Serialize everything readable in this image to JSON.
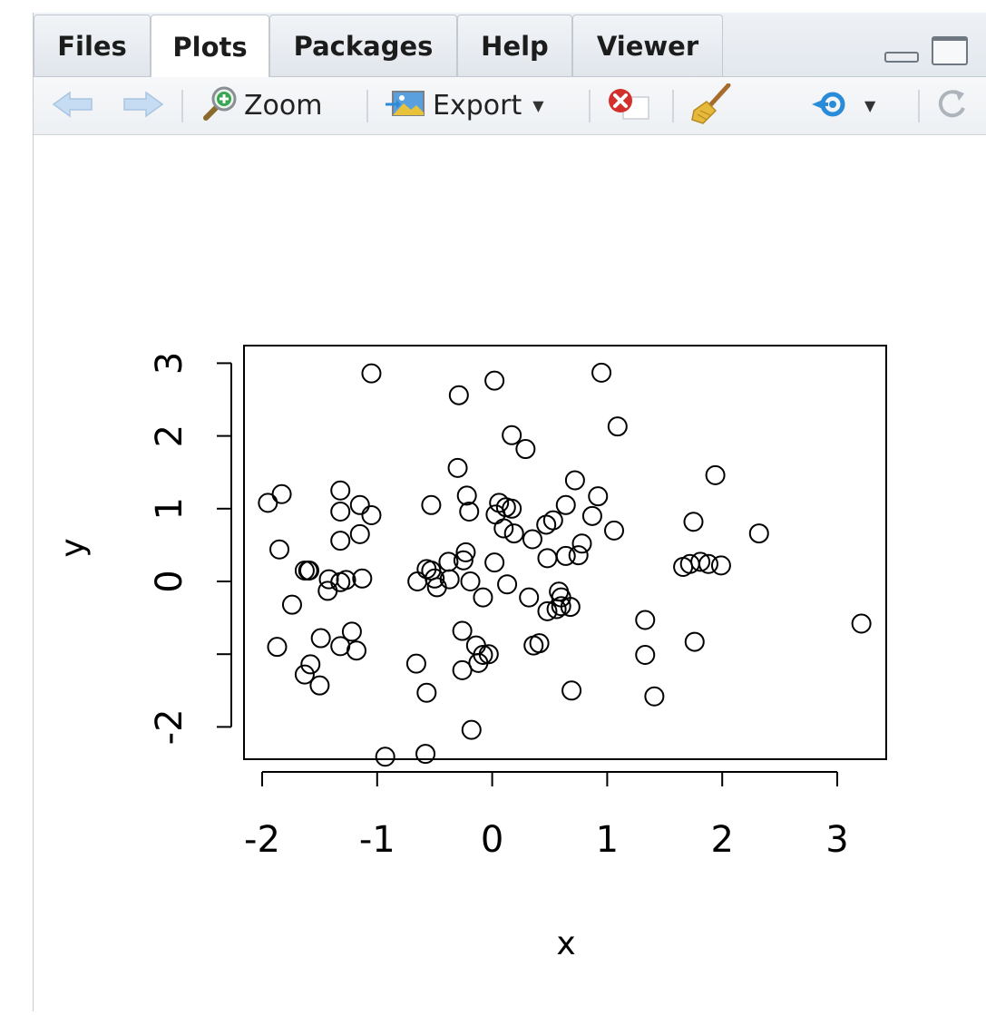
{
  "tabs": [
    {
      "label": "Files",
      "active": false
    },
    {
      "label": "Plots",
      "active": true
    },
    {
      "label": "Packages",
      "active": false
    },
    {
      "label": "Help",
      "active": false
    },
    {
      "label": "Viewer",
      "active": false
    }
  ],
  "toolbar": {
    "back_icon": "arrow-left-icon",
    "forward_icon": "arrow-right-icon",
    "zoom_label": "Zoom",
    "zoom_icon": "magnifier-plus-icon",
    "export_label": "Export",
    "export_icon": "image-export-icon",
    "remove_icon": "remove-plot-icon",
    "clear_icon": "broom-icon",
    "publish_icon": "publish-icon",
    "refresh_icon": "refresh-icon"
  },
  "colors": {
    "publish_blue": "#2a8bd9",
    "remove_red": "#d4302b",
    "arrow_blue": "#b9d4ef"
  },
  "chart_data": {
    "type": "scatter",
    "title": "",
    "xlabel": "x",
    "ylabel": "y",
    "xlim": [
      -2.2,
      3.4
    ],
    "ylim": [
      -2.6,
      3.1
    ],
    "x_ticks": [
      -2,
      -1,
      0,
      1,
      2,
      3
    ],
    "y_ticks": [
      -2,
      0,
      1,
      2,
      3
    ],
    "x_tick_labels": [
      "-2",
      "-1",
      "0",
      "1",
      "2",
      "3"
    ],
    "y_tick_labels": [
      "-2",
      "0",
      "1",
      "2",
      "3"
    ],
    "marker": "open-circle",
    "grid": false,
    "points": [
      [
        -1.95,
        1.08
      ],
      [
        -1.83,
        1.2
      ],
      [
        -1.85,
        0.44
      ],
      [
        -1.74,
        -0.32
      ],
      [
        -1.87,
        -0.9
      ],
      [
        -1.63,
        0.15
      ],
      [
        -1.6,
        0.15
      ],
      [
        -1.59,
        0.15
      ],
      [
        -1.63,
        -1.28
      ],
      [
        -1.58,
        -1.14
      ],
      [
        -1.5,
        -1.43
      ],
      [
        -1.49,
        -0.78
      ],
      [
        -1.43,
        -0.13
      ],
      [
        -1.42,
        0.03
      ],
      [
        -1.32,
        1.25
      ],
      [
        -1.32,
        0.96
      ],
      [
        -1.32,
        0.56
      ],
      [
        -1.32,
        -0.01
      ],
      [
        -1.27,
        0.02
      ],
      [
        -1.32,
        -0.89
      ],
      [
        -1.22,
        -0.69
      ],
      [
        -1.18,
        -0.95
      ],
      [
        -1.15,
        1.05
      ],
      [
        -1.15,
        0.65
      ],
      [
        -1.13,
        0.04
      ],
      [
        -1.05,
        0.91
      ],
      [
        -1.05,
        2.86
      ],
      [
        -0.93,
        -2.41
      ],
      [
        -0.65,
        0.0
      ],
      [
        -0.66,
        -1.13
      ],
      [
        -0.57,
        -1.53
      ],
      [
        -0.58,
        -2.37
      ],
      [
        -0.57,
        0.17
      ],
      [
        -0.53,
        0.15
      ],
      [
        -0.53,
        1.05
      ],
      [
        -0.5,
        0.04
      ],
      [
        -0.48,
        -0.08
      ],
      [
        -0.38,
        0.27
      ],
      [
        -0.37,
        0.03
      ],
      [
        -0.3,
        1.56
      ],
      [
        -0.29,
        2.56
      ],
      [
        -0.25,
        0.29
      ],
      [
        -0.26,
        -0.68
      ],
      [
        -0.26,
        -1.22
      ],
      [
        -0.23,
        0.4
      ],
      [
        -0.22,
        1.18
      ],
      [
        -0.2,
        0.96
      ],
      [
        -0.19,
        0.0
      ],
      [
        -0.18,
        -2.04
      ],
      [
        -0.14,
        -0.88
      ],
      [
        -0.12,
        -1.12
      ],
      [
        -0.08,
        -1.01
      ],
      [
        -0.08,
        -0.22
      ],
      [
        -0.03,
        -1.0
      ],
      [
        0.02,
        0.26
      ],
      [
        0.02,
        2.76
      ],
      [
        0.03,
        0.92
      ],
      [
        0.06,
        1.08
      ],
      [
        0.1,
        0.73
      ],
      [
        0.12,
        1.02
      ],
      [
        0.13,
        -0.04
      ],
      [
        0.17,
        2.01
      ],
      [
        0.17,
        1.0
      ],
      [
        0.19,
        0.66
      ],
      [
        0.29,
        1.82
      ],
      [
        0.32,
        -0.22
      ],
      [
        0.35,
        0.58
      ],
      [
        0.36,
        -0.88
      ],
      [
        0.41,
        -0.85
      ],
      [
        0.47,
        0.78
      ],
      [
        0.48,
        0.32
      ],
      [
        0.48,
        -0.41
      ],
      [
        0.53,
        0.84
      ],
      [
        0.56,
        -0.38
      ],
      [
        0.58,
        -0.14
      ],
      [
        0.6,
        -0.22
      ],
      [
        0.6,
        -0.34
      ],
      [
        0.64,
        1.05
      ],
      [
        0.64,
        0.35
      ],
      [
        0.68,
        -0.35
      ],
      [
        0.69,
        -1.5
      ],
      [
        0.72,
        1.39
      ],
      [
        0.75,
        0.36
      ],
      [
        0.78,
        0.52
      ],
      [
        0.87,
        0.9
      ],
      [
        0.92,
        1.17
      ],
      [
        0.95,
        2.87
      ],
      [
        1.06,
        0.7
      ],
      [
        1.09,
        2.13
      ],
      [
        1.33,
        -0.53
      ],
      [
        1.33,
        -1.01
      ],
      [
        1.41,
        -1.58
      ],
      [
        1.66,
        0.2
      ],
      [
        1.72,
        0.24
      ],
      [
        1.75,
        0.82
      ],
      [
        1.76,
        -0.83
      ],
      [
        1.81,
        0.27
      ],
      [
        1.88,
        0.24
      ],
      [
        1.94,
        1.46
      ],
      [
        1.99,
        0.22
      ],
      [
        2.32,
        0.66
      ],
      [
        3.21,
        -0.58
      ]
    ]
  }
}
